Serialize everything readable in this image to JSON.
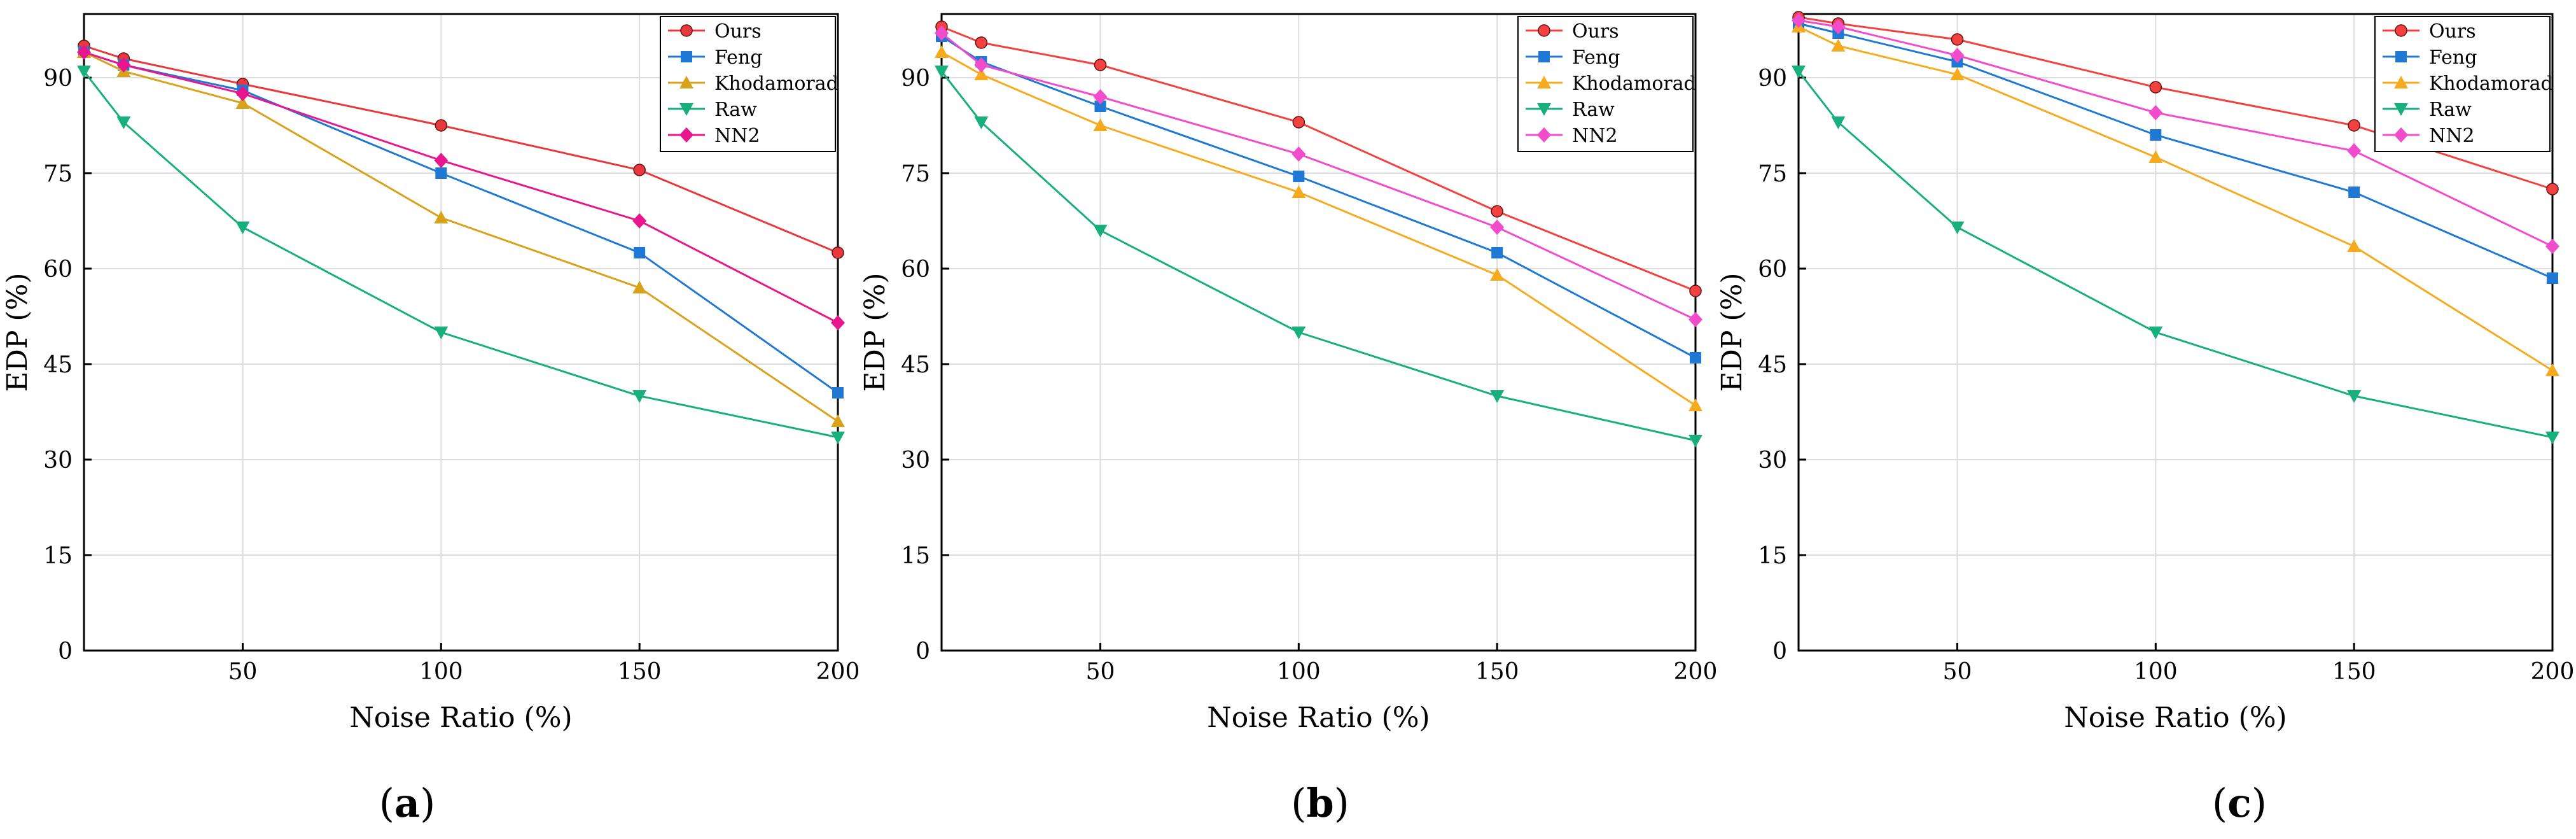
{
  "figure": {
    "panel_captions": [
      {
        "open": "(",
        "letter": "a",
        "close": ")"
      },
      {
        "open": "(",
        "letter": "b",
        "close": ")"
      },
      {
        "open": "(",
        "letter": "c",
        "close": ")"
      }
    ]
  },
  "chart_data": [
    {
      "type": "line",
      "panel": "a",
      "xlabel": "Noise Ratio (%)",
      "ylabel": "EDP (%)",
      "xlim": [
        10,
        200
      ],
      "ylim": [
        0,
        100
      ],
      "xticks": [
        50,
        100,
        150,
        200
      ],
      "yticks": [
        0,
        15,
        30,
        45,
        60,
        75,
        90
      ],
      "grid": true,
      "legend_position": "top-right",
      "x": [
        10,
        20,
        50,
        100,
        150,
        200
      ],
      "series": [
        {
          "name": "Ours",
          "color": "#e8383d",
          "marker": "circle",
          "values": [
            95,
            93,
            89,
            82.5,
            75.5,
            62.5
          ]
        },
        {
          "name": "Feng",
          "color": "#1f78d4",
          "marker": "square",
          "values": [
            94,
            92,
            88,
            75,
            62.5,
            40.5
          ]
        },
        {
          "name": "Khodamorad",
          "color": "#d9a21b",
          "marker": "triangle-up",
          "values": [
            94,
            91,
            86,
            68,
            57,
            36
          ]
        },
        {
          "name": "Raw",
          "color": "#17b07c",
          "marker": "triangle-down",
          "values": [
            91,
            83,
            66.5,
            50,
            40,
            33.5
          ]
        },
        {
          "name": "NN2",
          "color": "#e8168c",
          "marker": "diamond",
          "values": [
            94,
            92,
            87.5,
            77,
            67.5,
            51.5
          ]
        }
      ]
    },
    {
      "type": "line",
      "panel": "b",
      "xlabel": "Noise Ratio (%)",
      "ylabel": "EDP (%)",
      "xlim": [
        10,
        200
      ],
      "ylim": [
        0,
        100
      ],
      "xticks": [
        50,
        100,
        150,
        200
      ],
      "yticks": [
        0,
        15,
        30,
        45,
        60,
        75,
        90
      ],
      "grid": true,
      "legend_position": "top-right",
      "x": [
        10,
        20,
        50,
        100,
        150,
        200
      ],
      "series": [
        {
          "name": "Ours",
          "color": "#f2413f",
          "marker": "circle",
          "values": [
            98,
            95.5,
            92,
            83,
            69,
            56.5
          ]
        },
        {
          "name": "Feng",
          "color": "#1f78d4",
          "marker": "square",
          "values": [
            96.5,
            92.5,
            85.5,
            74.5,
            62.5,
            46
          ]
        },
        {
          "name": "Khodamorad",
          "color": "#f6ab1e",
          "marker": "triangle-up",
          "values": [
            94,
            90.5,
            82.5,
            72,
            59,
            38.5
          ]
        },
        {
          "name": "Raw",
          "color": "#17b07c",
          "marker": "triangle-down",
          "values": [
            91,
            83,
            66,
            50,
            40,
            33
          ]
        },
        {
          "name": "NN2",
          "color": "#f24bcb",
          "marker": "diamond",
          "values": [
            97,
            92,
            87,
            78,
            66.5,
            52
          ]
        }
      ]
    },
    {
      "type": "line",
      "panel": "c",
      "xlabel": "Noise Ratio (%)",
      "ylabel": "EDP (%)",
      "xlim": [
        10,
        200
      ],
      "ylim": [
        0,
        100
      ],
      "xticks": [
        50,
        100,
        150,
        200
      ],
      "yticks": [
        0,
        15,
        30,
        45,
        60,
        75,
        90
      ],
      "grid": true,
      "legend_position": "top-right",
      "x": [
        10,
        20,
        50,
        100,
        150,
        200
      ],
      "series": [
        {
          "name": "Ours",
          "color": "#f2413f",
          "marker": "circle",
          "values": [
            99.5,
            98.5,
            96,
            88.5,
            82.5,
            72.5
          ]
        },
        {
          "name": "Feng",
          "color": "#1f78d4",
          "marker": "square",
          "values": [
            98.5,
            97,
            92.5,
            81,
            72,
            58.5
          ]
        },
        {
          "name": "Khodamorad",
          "color": "#f6ab1e",
          "marker": "triangle-up",
          "values": [
            98,
            95,
            90.5,
            77.5,
            63.5,
            44
          ]
        },
        {
          "name": "Raw",
          "color": "#17b07c",
          "marker": "triangle-down",
          "values": [
            91,
            83,
            66.5,
            50,
            40,
            33.5
          ]
        },
        {
          "name": "NN2",
          "color": "#f24bcb",
          "marker": "diamond",
          "values": [
            99,
            98,
            93.5,
            84.5,
            78.5,
            63.5
          ]
        }
      ]
    }
  ]
}
